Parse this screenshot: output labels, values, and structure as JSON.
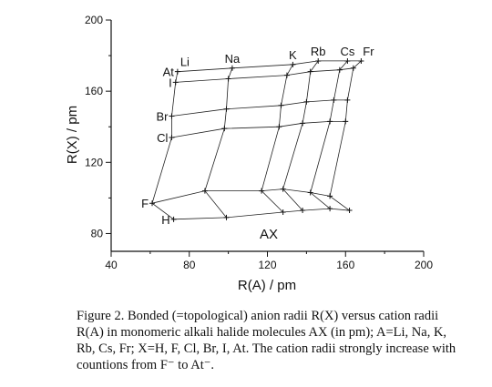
{
  "chart_data": {
    "type": "line",
    "xlabel": "R(A) / pm",
    "ylabel": "R(X) / pm",
    "xlim": [
      40,
      200
    ],
    "ylim": [
      70,
      200
    ],
    "x_ticks": [
      40,
      80,
      120,
      160,
      200
    ],
    "y_ticks": [
      80,
      120,
      160,
      200
    ],
    "annotation": "AX",
    "cations": [
      "Li",
      "Na",
      "K",
      "Rb",
      "Cs",
      "Fr"
    ],
    "anions": [
      "H",
      "F",
      "Cl",
      "Br",
      "I",
      "At"
    ],
    "series": [
      {
        "name": "H",
        "x": [
          72,
          99,
          128,
          138,
          152,
          162
        ],
        "y": [
          88,
          89,
          92,
          93,
          94,
          93
        ]
      },
      {
        "name": "F",
        "x": [
          61,
          88,
          117,
          128,
          142,
          152
        ],
        "y": [
          97,
          104,
          104,
          105,
          103,
          101
        ]
      },
      {
        "name": "Cl",
        "x": [
          71,
          98,
          126,
          138,
          152,
          160
        ],
        "y": [
          134,
          139,
          140,
          142,
          143,
          143
        ]
      },
      {
        "name": "Br",
        "x": [
          71,
          99,
          127,
          140,
          154,
          161
        ],
        "y": [
          146,
          150,
          152,
          154,
          155,
          155
        ]
      },
      {
        "name": "I",
        "x": [
          73,
          100,
          130,
          142,
          157,
          164
        ],
        "y": [
          165,
          167,
          169,
          171,
          172,
          173
        ]
      },
      {
        "name": "At",
        "x": [
          74,
          102,
          133,
          146,
          161,
          168
        ],
        "y": [
          171,
          173,
          175,
          177,
          177,
          177
        ]
      }
    ]
  },
  "caption": {
    "lines": [
      "Figure 2. Bonded (=topological) anion radii R(X) versus cation radii",
      "R(A) in monomeric alkali halide molecules AX (in pm); A=Li, Na, K,",
      "Rb, Cs, Fr; X=H, F, Cl, Br, I, At. The cation radii strongly increase with",
      "countions from F⁻ to At⁻."
    ]
  }
}
